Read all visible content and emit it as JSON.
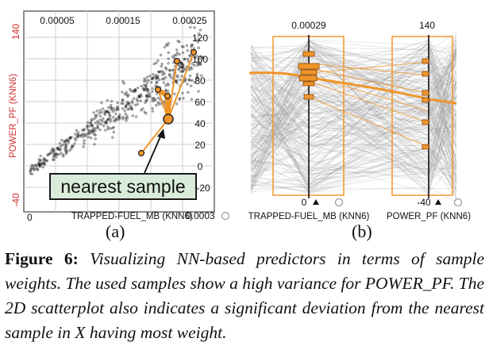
{
  "panel_a": {
    "x_top_ticks": [
      "0.00005",
      "0.00015",
      "0.00025"
    ],
    "y_left_ticks": [
      "140",
      "-40"
    ],
    "y_right_ticks": [
      "120",
      "100",
      "80",
      "60",
      "40",
      "20",
      "0",
      "-20"
    ],
    "x_bottom_ticks": [
      "0",
      "0.0003"
    ],
    "y_axis_label": "POWER_PF (KNN6)",
    "x_axis_label": "TRAPPED-FUEL_MB (KNN6)",
    "annotation": "nearest sample",
    "panel_label": "(a)"
  },
  "panel_b": {
    "axis1_top": "0.00029",
    "axis2_top": "140",
    "axis1_bottom": "0",
    "axis2_bottom": "-40",
    "axis1_label": "TRAPPED-FUEL_MB (KNN6)",
    "axis2_label": "POWER_PF (KNN6)",
    "panel_label": "(b)"
  },
  "caption": {
    "figure_label": "Figure 6:",
    "text": "Visualizing NN-based predictors in terms of sample weights. The used samples show a high variance for POWER_PF. The 2D scatterplot also indicates a significant deviation from the nearest sample in X having most weight."
  },
  "colors": {
    "accent": "#f0952a",
    "accent_dark": "#e07a10",
    "box_fill": "#d9ebd9",
    "axis_red": "#d03030"
  }
}
